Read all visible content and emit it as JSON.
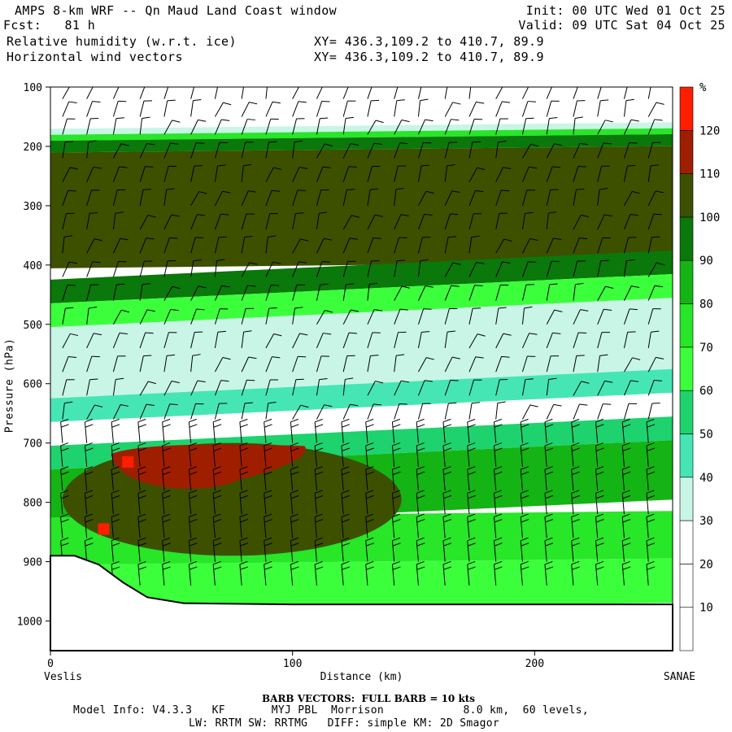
{
  "header": {
    "title": "AMPS 8-km WRF -- Qn Maud Land Coast window",
    "forecast": "Fcst:   81 h",
    "field1": "Relative humidity (w.r.t. ice)",
    "field2": "Horizontal wind vectors",
    "xy1": "XY= 436.3,109.2 to 410.7, 89.9",
    "xy2": "XY= 436.3,109.2 to 410.7, 89.9",
    "init": "Init: 00 UTC Wed 01 Oct 25",
    "valid": "Valid: 09 UTC Sat 04 Oct 25"
  },
  "chart_data": {
    "type": "heatmap",
    "title": "Relative humidity (w.r.t. ice)",
    "ylabel": "Pressure (hPa)",
    "xlabel": "Distance (km)",
    "x_ticks": [
      "0",
      "100",
      "200"
    ],
    "y_ticks": [
      "100",
      "200",
      "300",
      "400",
      "500",
      "600",
      "700",
      "800",
      "900",
      "1000"
    ],
    "xlim": [
      0,
      257
    ],
    "ylim": [
      100,
      1050
    ],
    "y_reversed": true,
    "left_endpoint": "Veslis",
    "right_endpoint": "SANAE",
    "colorbar": {
      "unit": "%",
      "tick_labels": [
        "10",
        "20",
        "30",
        "40",
        "50",
        "60",
        "70",
        "80",
        "90",
        "100",
        "110",
        "120"
      ],
      "levels": [
        0,
        10,
        20,
        30,
        40,
        50,
        60,
        70,
        80,
        90,
        100,
        110,
        120,
        130
      ],
      "colors": [
        "#ffffff",
        "#ffffff",
        "#ffffff",
        "#c8f5e6",
        "#46e6b4",
        "#1ed26e",
        "#3cff3c",
        "#28e628",
        "#14b414",
        "#0a780a",
        "#3c5000",
        "#a01e00",
        "#ff1e00"
      ]
    },
    "rh_layers": [
      {
        "p_top": 100,
        "p_bottom": 165,
        "rh": 15
      },
      {
        "p_top": 165,
        "p_bottom": 175,
        "rh": 35
      },
      {
        "p_top": 175,
        "p_bottom": 185,
        "rh": 75
      },
      {
        "p_top": 185,
        "p_bottom": 205,
        "rh": 95
      },
      {
        "p_top": 205,
        "p_bottom": 400,
        "rh": 105
      },
      {
        "p_top": 400,
        "p_bottom": 440,
        "rh": 95
      },
      {
        "p_top": 440,
        "p_bottom": 480,
        "rh": 65
      },
      {
        "p_top": 480,
        "p_bottom": 600,
        "rh": 35
      },
      {
        "p_top": 600,
        "p_bottom": 640,
        "rh": 45
      },
      {
        "p_top": 640,
        "p_bottom": 680,
        "rh": 25
      },
      {
        "p_top": 680,
        "p_bottom": 720,
        "rh": 55
      },
      {
        "p_top": 720,
        "p_bottom": 820,
        "rh": 85
      },
      {
        "p_top": 820,
        "p_bottom": 900,
        "rh": 75
      },
      {
        "p_top": 900,
        "p_bottom": 975,
        "rh": 65
      }
    ],
    "moist_core": {
      "rh": 105,
      "x_range_km": [
        5,
        145
      ],
      "p_range_hpa": [
        700,
        890
      ]
    },
    "saturated_patch": {
      "rh": 115,
      "x_range_km": [
        25,
        105
      ],
      "p_range_hpa": [
        705,
        775
      ]
    },
    "peak_patches": [
      {
        "rh": 125,
        "x_km": 32,
        "p_hpa": 732
      },
      {
        "rh": 125,
        "x_km": 22,
        "p_hpa": 845
      }
    ],
    "terrain_surface_hpa": [
      {
        "x": 0,
        "p": 890
      },
      {
        "x": 10,
        "p": 890
      },
      {
        "x": 20,
        "p": 905
      },
      {
        "x": 30,
        "p": 935
      },
      {
        "x": 40,
        "p": 960
      },
      {
        "x": 55,
        "p": 970
      },
      {
        "x": 100,
        "p": 972
      },
      {
        "x": 257,
        "p": 972
      }
    ],
    "wind_barb_levels_hpa": [
      120,
      150,
      180,
      220,
      260,
      300,
      340,
      380,
      420,
      460,
      500,
      540,
      580,
      620,
      660,
      700,
      740,
      780,
      820,
      860,
      900,
      940
    ],
    "wind_barb_x_km": [
      5,
      15,
      26,
      37,
      47,
      58,
      68,
      79,
      89,
      100,
      110,
      121,
      131,
      142,
      152,
      163,
      173,
      184,
      195,
      205,
      216,
      226,
      237,
      247
    ]
  },
  "footer": {
    "barb_note": "BARB VECTORS:  FULL BARB = 10 kts",
    "model_line1": "Model Info: V4.3.3   KF       MYJ PBL  Morrison            8.0 km,  60 levels,",
    "model_line2": "LW: RRTM SW: RRTMG   DIFF: simple KM: 2D Smagor"
  }
}
